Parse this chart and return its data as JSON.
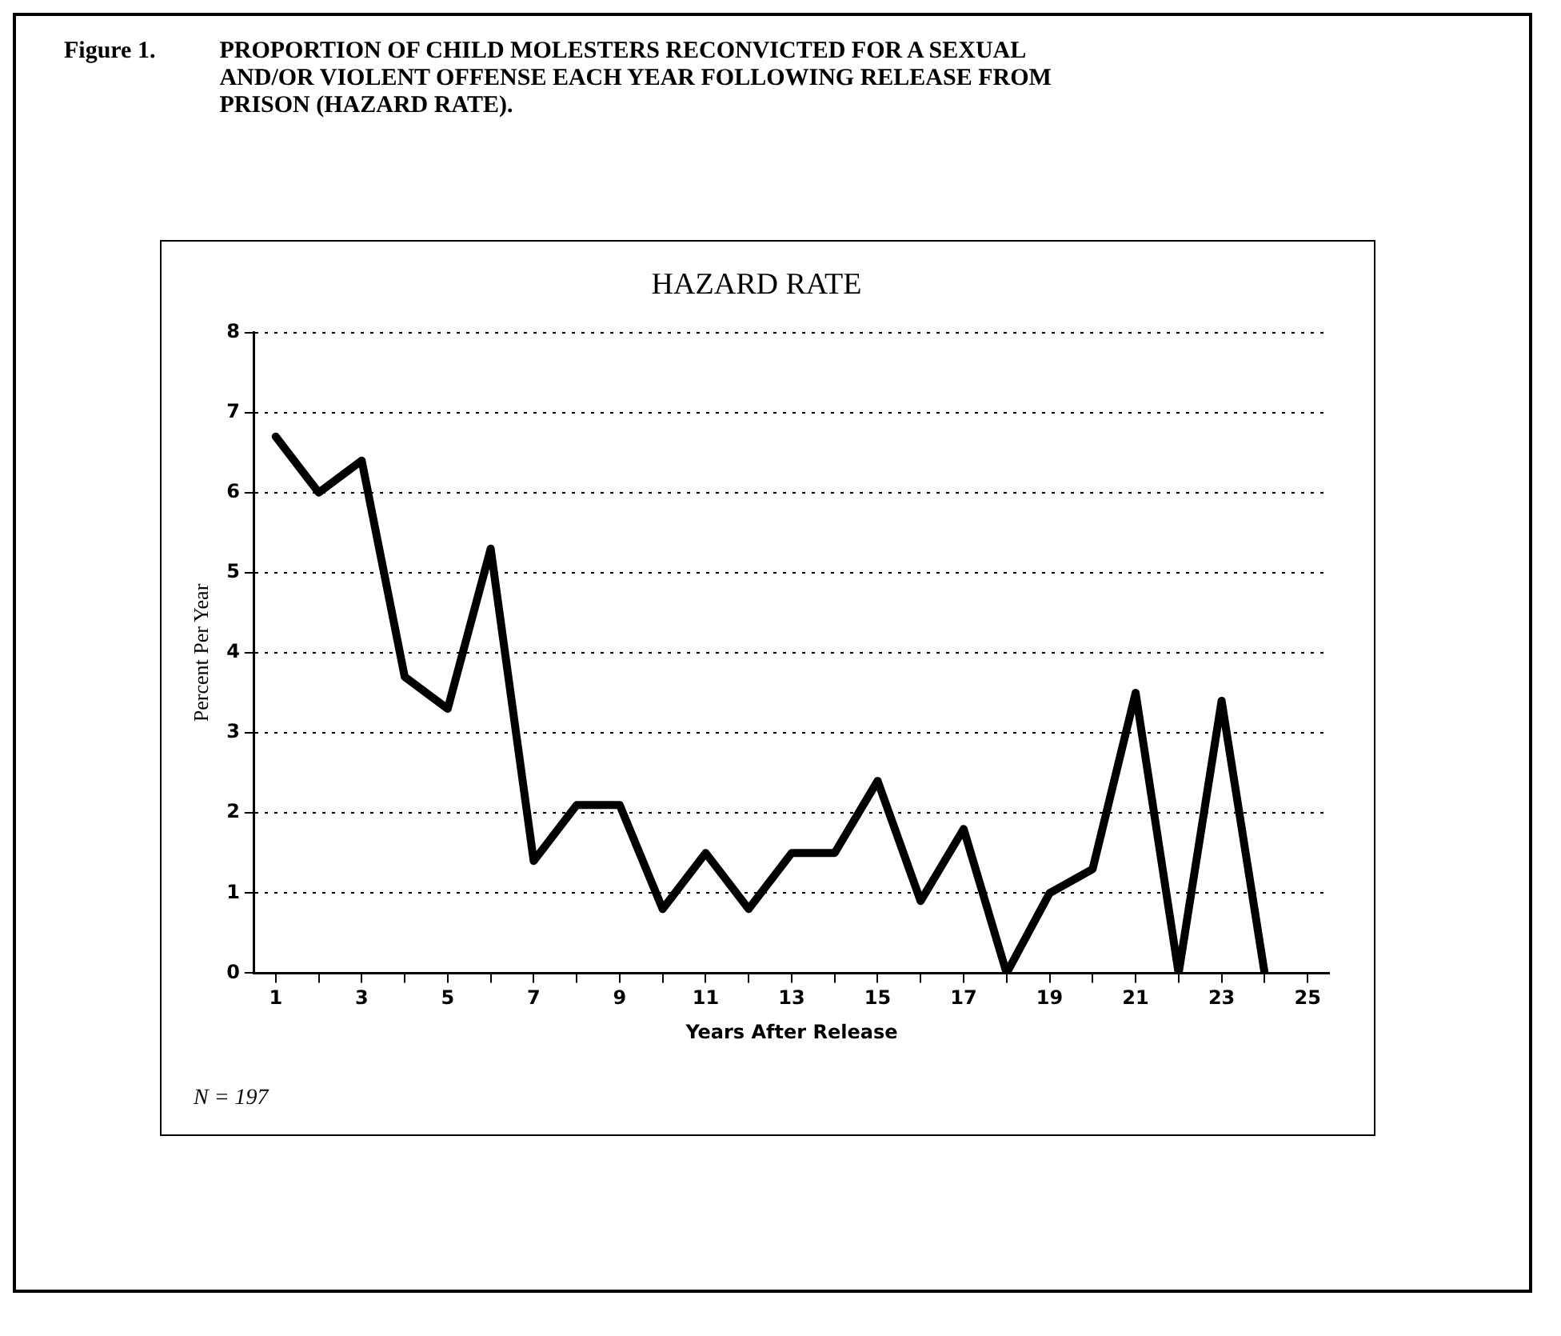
{
  "chart_data": {
    "type": "line",
    "title": "HAZARD RATE",
    "xlabel": "Years After Release",
    "ylabel": "Percent Per Year",
    "annotations": [
      "Figure 1.",
      "PROPORTION OF CHILD MOLESTERS RECONVICTED FOR A SEXUAL AND/OR VIOLENT OFFENSE EACH YEAR FOLLOWING RELEASE FROM PRISON (HAZARD RATE).",
      "N = 197"
    ],
    "x": [
      1,
      2,
      3,
      4,
      5,
      6,
      7,
      8,
      9,
      10,
      11,
      12,
      13,
      14,
      15,
      16,
      17,
      18,
      19,
      20,
      21,
      22,
      23,
      24
    ],
    "series": [
      {
        "color": "#000000",
        "values": [
          6.7,
          6.0,
          6.4,
          3.7,
          3.3,
          5.3,
          1.4,
          2.1,
          2.1,
          0.8,
          1.5,
          0.8,
          1.5,
          1.5,
          2.4,
          0.9,
          1.8,
          0,
          1.0,
          1.3,
          3.5,
          0,
          3.4,
          0
        ]
      }
    ],
    "xlim": [
      0.5,
      25.5
    ],
    "xticks": [
      1,
      {
        "value": 2,
        "label": null
      },
      3,
      {
        "value": 4,
        "label": null
      },
      5,
      {
        "value": 6,
        "label": null
      },
      7,
      {
        "value": 8,
        "label": null
      },
      9,
      {
        "value": 10,
        "label": null
      },
      11,
      {
        "value": 12,
        "label": null
      },
      13,
      {
        "value": 14,
        "label": null
      },
      15,
      {
        "value": 16,
        "label": null
      },
      17,
      {
        "value": 18,
        "label": null
      },
      19,
      {
        "value": 20,
        "label": null
      },
      21,
      {
        "value": 22,
        "label": null
      },
      23,
      {
        "value": 24,
        "label": null
      },
      25
    ],
    "ylim": [
      0,
      8
    ],
    "yticks": [
      0,
      1,
      2,
      3,
      4,
      5,
      6,
      7,
      8
    ],
    "grid": "y",
    "legend": false,
    "marker": "none",
    "line_style": "solid"
  }
}
